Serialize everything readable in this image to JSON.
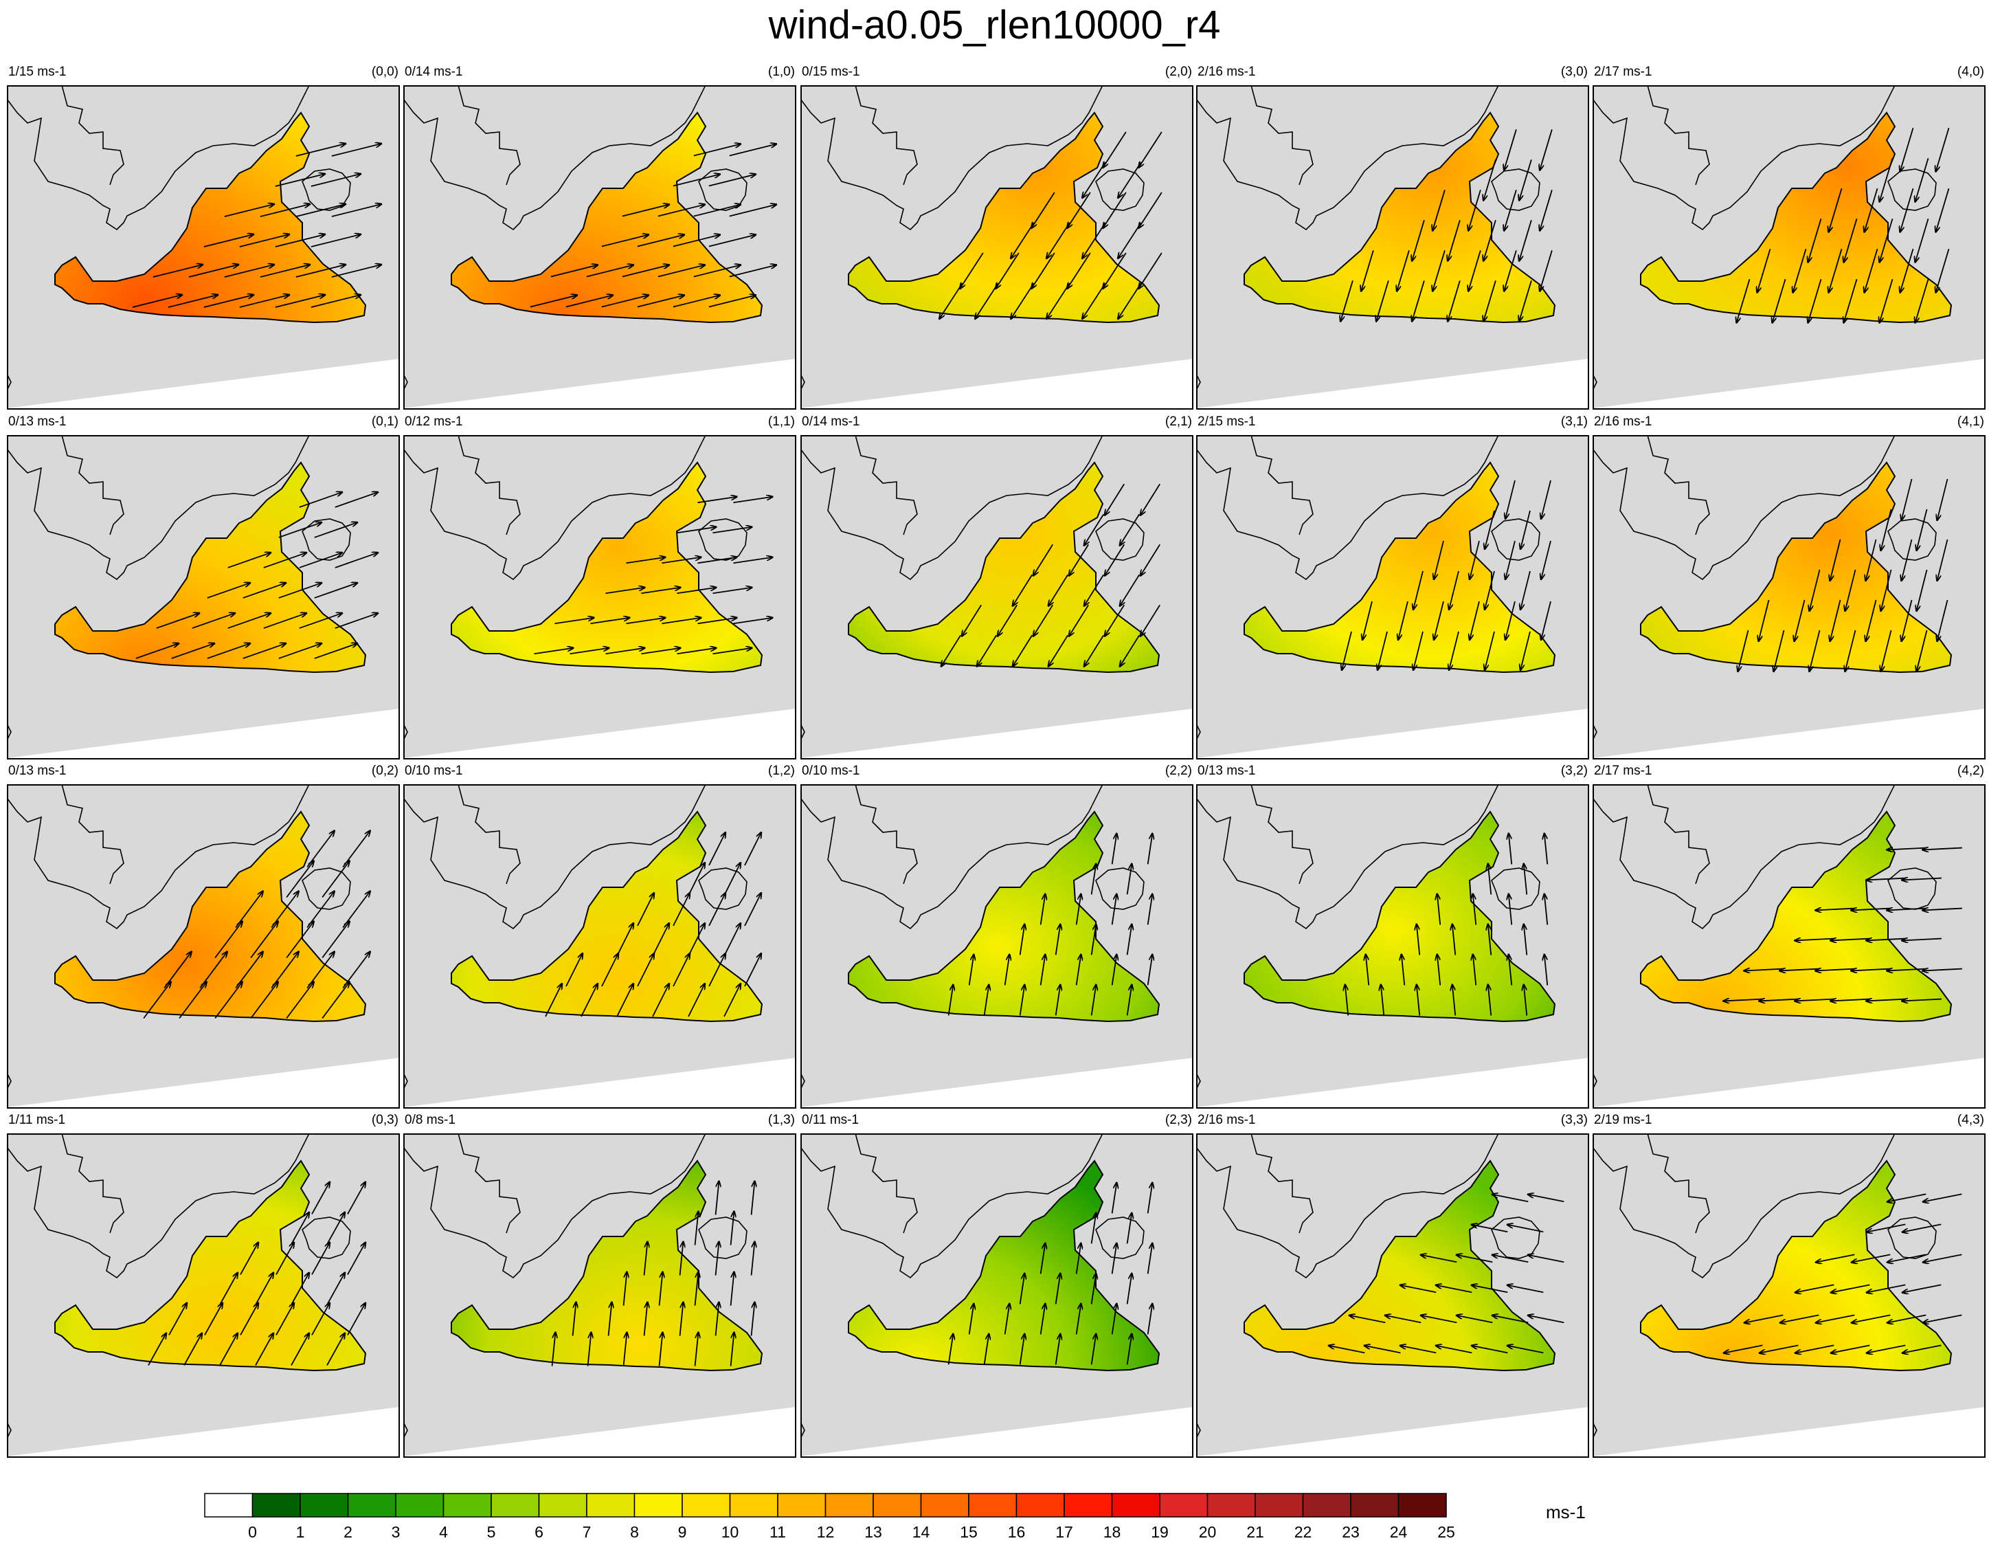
{
  "title": "wind-a0.05_rlen10000_r4",
  "colors": {
    "land": "#d9d9d9",
    "sea_void": "#ffffff",
    "coastline": "#000000"
  },
  "colorbar": {
    "unit": "ms-1",
    "levels": [
      "0",
      "1",
      "2",
      "3",
      "4",
      "5",
      "6",
      "7",
      "8",
      "9",
      "10",
      "11",
      "12",
      "13",
      "14",
      "15",
      "16",
      "17",
      "18",
      "19",
      "20",
      "21",
      "22",
      "23",
      "24",
      "25"
    ],
    "colors": [
      "#ffffff",
      "#005f00",
      "#087b00",
      "#1a9a00",
      "#32aa00",
      "#5ec000",
      "#96d200",
      "#bfdc00",
      "#e3e600",
      "#faf000",
      "#ffde00",
      "#ffcc00",
      "#ffb400",
      "#ff9b00",
      "#ff8400",
      "#ff6d00",
      "#ff5200",
      "#ff3800",
      "#ff1a00",
      "#f00a00",
      "#e02626",
      "#c82525",
      "#b02222",
      "#961d1d",
      "#7c1616",
      "#620a0a"
    ]
  },
  "chart_data": {
    "type": "vector-map-panels",
    "title": "wind-a0.05_rlen10000_r4",
    "unit": "ms-1",
    "panels": [
      {
        "id": "(0,0)",
        "range": "1/15 ms-1",
        "col": 0,
        "row": 0,
        "dir": [
          1.0,
          -0.25
        ],
        "speed": 13,
        "hot": [
          0.35,
          0.68
        ]
      },
      {
        "id": "(1,0)",
        "range": "0/14 ms-1",
        "col": 1,
        "row": 0,
        "dir": [
          1.0,
          -0.25
        ],
        "speed": 12,
        "hot": [
          0.4,
          0.7
        ]
      },
      {
        "id": "(2,0)",
        "range": "0/15 ms-1",
        "col": 2,
        "row": 0,
        "dir": [
          -0.55,
          0.85
        ],
        "speed": 10,
        "hot": [
          0.6,
          0.25
        ]
      },
      {
        "id": "(3,0)",
        "range": "2/16 ms-1",
        "col": 3,
        "row": 0,
        "dir": [
          -0.3,
          1.0
        ],
        "speed": 10,
        "hot": [
          0.6,
          0.25
        ]
      },
      {
        "id": "(4,0)",
        "range": "2/17 ms-1",
        "col": 4,
        "row": 0,
        "dir": [
          -0.3,
          1.0
        ],
        "speed": 11,
        "hot": [
          0.65,
          0.25
        ]
      },
      {
        "id": "(0,1)",
        "range": "0/13 ms-1",
        "col": 0,
        "row": 1,
        "dir": [
          1.0,
          -0.35
        ],
        "speed": 11,
        "hot": [
          0.35,
          0.72
        ]
      },
      {
        "id": "(1,1)",
        "range": "0/12 ms-1",
        "col": 1,
        "row": 1,
        "dir": [
          1.0,
          -0.15
        ],
        "speed": 9,
        "hot": [
          0.55,
          0.35
        ]
      },
      {
        "id": "(2,1)",
        "range": "0/14 ms-1",
        "col": 2,
        "row": 1,
        "dir": [
          -0.5,
          0.8
        ],
        "speed": 8,
        "hot": [
          0.55,
          0.3
        ]
      },
      {
        "id": "(3,1)",
        "range": "2/15 ms-1",
        "col": 3,
        "row": 1,
        "dir": [
          -0.25,
          1.0
        ],
        "speed": 9,
        "hot": [
          0.6,
          0.3
        ]
      },
      {
        "id": "(4,1)",
        "range": "2/16 ms-1",
        "col": 4,
        "row": 1,
        "dir": [
          -0.25,
          1.0
        ],
        "speed": 10,
        "hot": [
          0.6,
          0.3
        ]
      },
      {
        "id": "(0,2)",
        "range": "0/13 ms-1",
        "col": 0,
        "row": 2,
        "dir": [
          0.6,
          -0.8
        ],
        "speed": 11,
        "hot": [
          0.45,
          0.55
        ]
      },
      {
        "id": "(1,2)",
        "range": "0/10 ms-1",
        "col": 1,
        "row": 2,
        "dir": [
          0.45,
          -0.9
        ],
        "speed": 8,
        "hot": [
          0.55,
          0.6
        ]
      },
      {
        "id": "(2,2)",
        "range": "0/10 ms-1",
        "col": 2,
        "row": 2,
        "dir": [
          0.15,
          -1.0
        ],
        "speed": 6,
        "hot": [
          0.5,
          0.5
        ]
      },
      {
        "id": "(3,2)",
        "range": "0/13 ms-1",
        "col": 3,
        "row": 2,
        "dir": [
          -0.1,
          -1.0
        ],
        "speed": 6,
        "hot": [
          0.5,
          0.45
        ]
      },
      {
        "id": "(4,2)",
        "range": "2/17 ms-1",
        "col": 4,
        "row": 2,
        "dir": [
          -1.0,
          0.05
        ],
        "speed": 9,
        "hot": [
          0.3,
          0.7
        ]
      },
      {
        "id": "(0,3)",
        "range": "1/11 ms-1",
        "col": 0,
        "row": 3,
        "dir": [
          0.5,
          -0.9
        ],
        "speed": 8,
        "hot": [
          0.55,
          0.6
        ]
      },
      {
        "id": "(1,3)",
        "range": "0/8 ms-1",
        "col": 1,
        "row": 3,
        "dir": [
          0.1,
          -1.0
        ],
        "speed": 7,
        "hot": [
          0.6,
          0.65
        ]
      },
      {
        "id": "(2,3)",
        "range": "0/11 ms-1",
        "col": 2,
        "row": 3,
        "dir": [
          0.15,
          -1.0
        ],
        "speed": 6,
        "hot": [
          0.3,
          0.72
        ]
      },
      {
        "id": "(3,3)",
        "range": "2/16 ms-1",
        "col": 3,
        "row": 3,
        "dir": [
          -1.0,
          -0.2
        ],
        "speed": 8,
        "hot": [
          0.3,
          0.72
        ]
      },
      {
        "id": "(4,3)",
        "range": "2/19 ms-1",
        "col": 4,
        "row": 3,
        "dir": [
          -1.0,
          0.2
        ],
        "speed": 9,
        "hot": [
          0.35,
          0.7
        ]
      }
    ]
  }
}
